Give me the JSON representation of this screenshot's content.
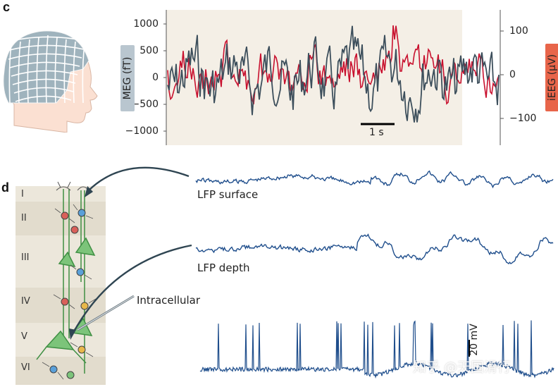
{
  "panel_c": {
    "letter": "c",
    "meg_label": "MEG (fT)",
    "ieeg_label": "iEEG (μV)",
    "meg_ticks": [
      "1000",
      "500",
      "0",
      "−500",
      "−1000"
    ],
    "ieeg_ticks": [
      "100",
      "0",
      "−100"
    ],
    "scale_bar_label": "1 s"
  },
  "panel_d": {
    "letter": "d",
    "layers": [
      "I",
      "II",
      "III",
      "IV",
      "V",
      "VI"
    ],
    "lfp_surface_label": "LFP surface",
    "lfp_depth_label": "LFP depth",
    "intracellular_label": "Intracellular",
    "scale_bar_label": "20 mV"
  },
  "watermark": "知乎 @天国滑行",
  "colors": {
    "meg_trace": "#3d4f5c",
    "ieeg_trace": "#c8102e",
    "lfp_trace": "#1f4e8c",
    "plot_bg": "#f4efe6",
    "meg_label_bg": "#b9c6cf",
    "ieeg_label_bg": "#e8654a",
    "cortex_bg": "#e8e2d3",
    "neuron_green": "#5aa95a"
  }
}
